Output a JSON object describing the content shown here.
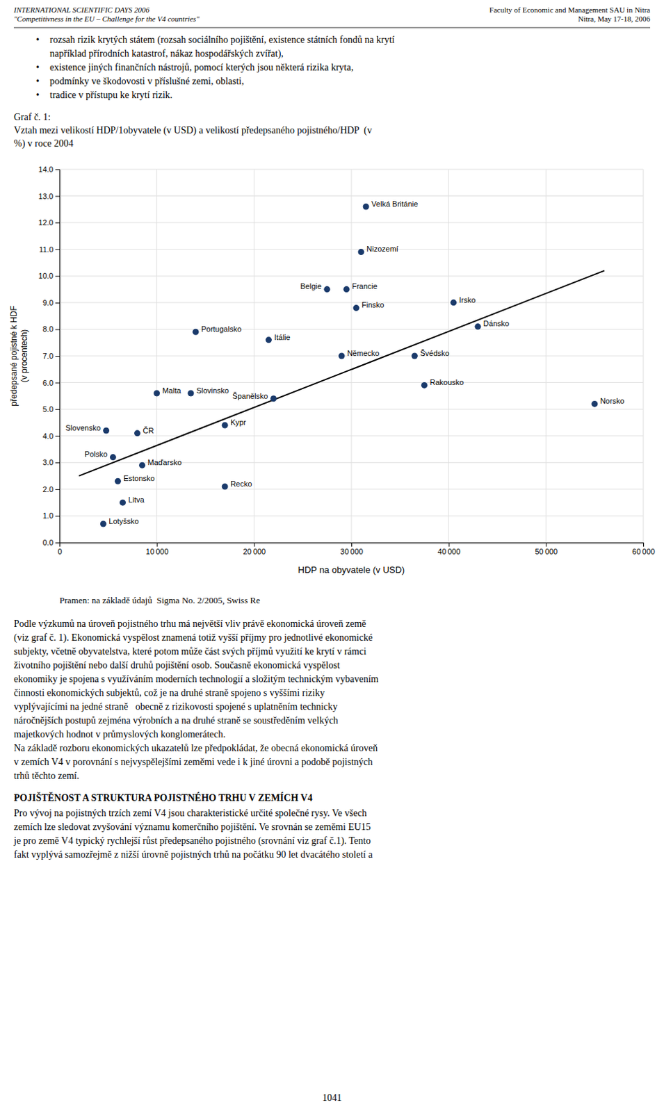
{
  "page_text": {
    "header_left": [
      "INTERNATIONAL SCIENTIFIC DAYS 2006",
      "\"Competitivness in the EU – Challenge for the V4 countries\""
    ],
    "header_right": [
      "Faculty of Economic and Management SAU in Nitra",
      "Nitra, May 17-18, 2006"
    ],
    "bullet_symbol": "•",
    "bullet_items": [
      [
        "rozsah rizik krytých státem (rozsah sociálního pojištění, existence státních fondů na krytí",
        "například přírodních katastrof, nákaz hospodářských zvířat),"
      ],
      [
        "existence jiných finančních nástrojů, pomocí kterých jsou některá rizika kryta,"
      ],
      [
        "podmínky ve škodovosti v příslušné zemi, oblasti,"
      ],
      [
        "tradice v přístupu ke krytí rizik."
      ]
    ],
    "source_text": "Pramen: na základě údajů  Sigma No. 2/2005, Swiss Re",
    "body_1": [
      "Podle výzkumů na úroveň pojistného trhu má největší vliv právě ekonomická úroveň země",
      "(viz graf č. 1). Ekonomická vyspělost znamená totiž vyšší příjmy pro jednotlivé ekonomické",
      "subjekty, včetně obyvatelstva, které potom může část svých příjmů využití ke krytí v rámci",
      "životního pojištění nebo další druhů pojištění osob. Současně ekonomická vyspělost",
      "ekonomiky je spojena s využíváním moderních technologií a složitým technickým vybavením",
      "činnosti ekonomických subjektů, což je na druhé straně spojeno s vyššími riziky",
      "vyplývajícími na jedné straně   obecně z rizikovosti spojené s uplatněním technicky",
      "náročnějších postupů zejména výrobních a na druhé straně se soustředěním velkých",
      "majetkových hodnot v průmyslových konglomerátech.",
      "Na základě rozboru ekonomických ukazatelů lze předpokládat, že obecná ekonomická úroveň",
      "v zemích V4 v porovnání s nejvyspělejšími zeměmi vede i k jiné úrovni a podobě pojistných",
      "trhů těchto zemí."
    ],
    "section_header": "POJIŠTĚNOST A STRUKTURA POJISTNÉHO TRHU V ZEMÍCH V4",
    "body_2": [
      "Pro vývoj na pojistných trzích zemí V4 jsou charakteristické určité společné rysy. Ve všech",
      "zemích lze sledovat zvyšování významu komerčního pojištění. Ve srovnán se zeměmi EU15",
      "je pro země V4 typický rychlejší růst předepsaného pojistného (srovnání viz graf č.1). Tento",
      "fakt vyplývá samozřejmě z nižší úrovně pojistných trhů na počátku 90 let dvacátého století a"
    ],
    "page_number": "1041"
  },
  "chart_data": {
    "type": "scatter",
    "title": [
      "Graf č. 1:",
      "Vztah mezi velikostí HDP/1obyvatele (v USD) a velikostí předepsaného pojistného/HDP  (v",
      "%) v roce 2004"
    ],
    "xlabel": "HDP na obyvatele (v USD)",
    "ylabel": "předepsané pojistné k HDF\n(v procentech)",
    "xlim": [
      0,
      60000
    ],
    "ylim": [
      0,
      14
    ],
    "xticks": [
      0,
      {
        "value": 10000,
        "label": "10 000"
      },
      {
        "value": 20000,
        "label": "20 000"
      },
      {
        "value": 30000,
        "label": "30 000"
      },
      {
        "value": 40000,
        "label": "40 000"
      },
      {
        "value": 50000,
        "label": "50 000"
      },
      {
        "value": 60000,
        "label": "60 000"
      }
    ],
    "yticks": [
      {
        "value": 0,
        "label": "0.0"
      },
      {
        "value": 1,
        "label": "1.0"
      },
      {
        "value": 2,
        "label": "2.0"
      },
      {
        "value": 3,
        "label": "3.0"
      },
      {
        "value": 4,
        "label": "4.0"
      },
      {
        "value": 5,
        "label": "5.0"
      },
      {
        "value": 6,
        "label": "6.0"
      },
      {
        "value": 7,
        "label": "7.0"
      },
      {
        "value": 8,
        "label": "8.0"
      },
      {
        "value": 9,
        "label": "9.0"
      },
      {
        "value": 10,
        "label": "10.0"
      },
      {
        "value": 11,
        "label": "11.0"
      },
      {
        "value": 12,
        "label": "12.0"
      },
      {
        "value": 13,
        "label": "13.0"
      },
      {
        "value": 14,
        "label": "14.0"
      }
    ],
    "grid": true,
    "color": "#1a3a6b",
    "labels": [
      "Lotyšsko",
      "Litva",
      "Estonsko",
      "Polsko",
      "Slovensko",
      "Maďarsko",
      "ČR",
      "Malta",
      "Slovinsko",
      "Kypr",
      "Recko",
      "Portugalsko",
      "Španělsko",
      "Itálie",
      "Německo",
      "Belgie",
      "Francie",
      "Finsko",
      "Nizozemí",
      "Velká Británie",
      "Švédsko",
      "Rakousko",
      "Irsko",
      "Dánsko",
      "Norsko"
    ],
    "x": [
      4500,
      6500,
      6000,
      5500,
      4800,
      8500,
      8000,
      10000,
      13500,
      17000,
      17000,
      14000,
      22000,
      21500,
      29000,
      27500,
      29500,
      30500,
      31000,
      31500,
      36500,
      37500,
      40500,
      43000,
      55000
    ],
    "values": [
      0.7,
      1.5,
      2.3,
      3.2,
      4.2,
      2.9,
      4.1,
      5.6,
      5.6,
      4.4,
      2.1,
      7.9,
      5.4,
      7.6,
      7.0,
      9.5,
      9.5,
      8.8,
      10.9,
      12.6,
      7.0,
      5.9,
      9.0,
      8.1,
      5.2
    ],
    "trendline": {
      "type": "line",
      "color": "#000000",
      "x": [
        2000,
        56000
      ],
      "values": [
        2.5,
        10.2
      ]
    }
  }
}
